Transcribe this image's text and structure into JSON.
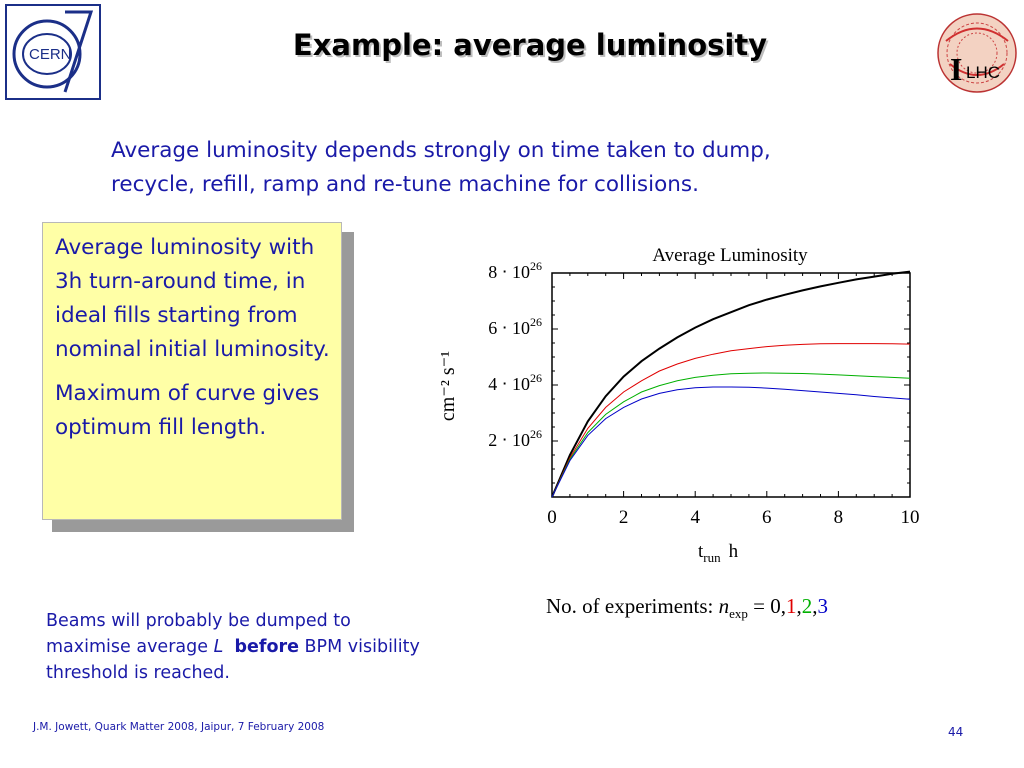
{
  "header": {
    "title": "Example: average luminosity",
    "cern_logo_text": "CERN",
    "lhc_logo_text": "LHC"
  },
  "intro": {
    "line1": "Average luminosity depends strongly on time taken to dump,",
    "line2": "recycle, refill, ramp and re-tune machine for collisions."
  },
  "callout": {
    "para1": "Average luminosity with 3h turn-around time, in ideal fills starting from nominal initial luminosity.",
    "para2": "Maximum of curve gives optimum fill length."
  },
  "beams_note": {
    "part1": "Beams will probably be dumped to maximise average ",
    "symbol": "L",
    "bold": "before",
    "part2": " BPM visibility threshold is reached."
  },
  "experiments_label": {
    "prefix": "No. of experiments: ",
    "var": "n",
    "sub": "exp",
    "eq": " = ",
    "v0": "0",
    "v1": "1",
    "v2": "2",
    "v3": "3",
    "colors": {
      "v0": "#000000",
      "v1": "#e00000",
      "v2": "#00b000",
      "v3": "#0000c8"
    }
  },
  "footer": {
    "text": "J.M. Jowett, Quark Matter 2008, Jaipur, 7 February 2008",
    "page": "44"
  },
  "chart_data": {
    "type": "line",
    "title": "Average Luminosity",
    "xlabel_main": "t",
    "xlabel_sub": "run",
    "xlabel_unit": "h",
    "ylabel": "cm⁻² s⁻¹",
    "xlim": [
      0,
      10
    ],
    "ylim": [
      0,
      8e+26
    ],
    "x_ticks": [
      "0",
      "2",
      "4",
      "6",
      "8",
      "10"
    ],
    "x_tick_values": [
      0,
      2,
      4,
      6,
      8,
      10
    ],
    "y_tick_values": [
      2e+26,
      4e+26,
      6e+26,
      8e+26
    ],
    "y_ticks": [
      {
        "mant": "2",
        "exp": "26"
      },
      {
        "mant": "4",
        "exp": "26"
      },
      {
        "mant": "6",
        "exp": "26"
      },
      {
        "mant": "8",
        "exp": "26"
      }
    ],
    "x": [
      0,
      0.5,
      1,
      1.5,
      2,
      2.5,
      3,
      3.5,
      4,
      4.5,
      5,
      5.5,
      6,
      6.5,
      7,
      7.5,
      8,
      8.5,
      9,
      9.5,
      10
    ],
    "series": [
      {
        "name": "0",
        "color": "#000000",
        "values": [
          0,
          1.5e+26,
          2.7e+26,
          3.6e+26,
          4.3e+26,
          4.85e+26,
          5.3e+26,
          5.7e+26,
          6.05e+26,
          6.35e+26,
          6.6e+26,
          6.85e+26,
          7.05e+26,
          7.22e+26,
          7.38e+26,
          7.52e+26,
          7.65e+26,
          7.77e+26,
          7.87e+26,
          7.97e+26,
          8.05e+26
        ]
      },
      {
        "name": "1",
        "color": "#e00000",
        "values": [
          0,
          1.4e+26,
          2.45e+26,
          3.2e+26,
          3.75e+26,
          4.15e+26,
          4.5e+26,
          4.75e+26,
          4.95e+26,
          5.1e+26,
          5.22e+26,
          5.3e+26,
          5.37e+26,
          5.42e+26,
          5.45e+26,
          5.47e+26,
          5.48e+26,
          5.48e+26,
          5.48e+26,
          5.47e+26,
          5.46e+26
        ]
      },
      {
        "name": "2",
        "color": "#00b000",
        "values": [
          0,
          1.35e+26,
          2.3e+26,
          2.95e+26,
          3.4e+26,
          3.75e+26,
          3.98e+26,
          4.15e+26,
          4.27e+26,
          4.35e+26,
          4.4e+26,
          4.42e+26,
          4.43e+26,
          4.42e+26,
          4.41e+26,
          4.39e+26,
          4.36e+26,
          4.33e+26,
          4.3e+26,
          4.27e+26,
          4.24e+26
        ]
      },
      {
        "name": "3",
        "color": "#0000c8",
        "values": [
          0,
          1.3e+26,
          2.2e+26,
          2.8e+26,
          3.2e+26,
          3.5e+26,
          3.7e+26,
          3.83e+26,
          3.9e+26,
          3.93e+26,
          3.93e+26,
          3.92e+26,
          3.89e+26,
          3.85e+26,
          3.8e+26,
          3.75e+26,
          3.7e+26,
          3.65e+26,
          3.59e+26,
          3.54e+26,
          3.49e+26
        ]
      }
    ],
    "grid": false,
    "legend": "none"
  }
}
